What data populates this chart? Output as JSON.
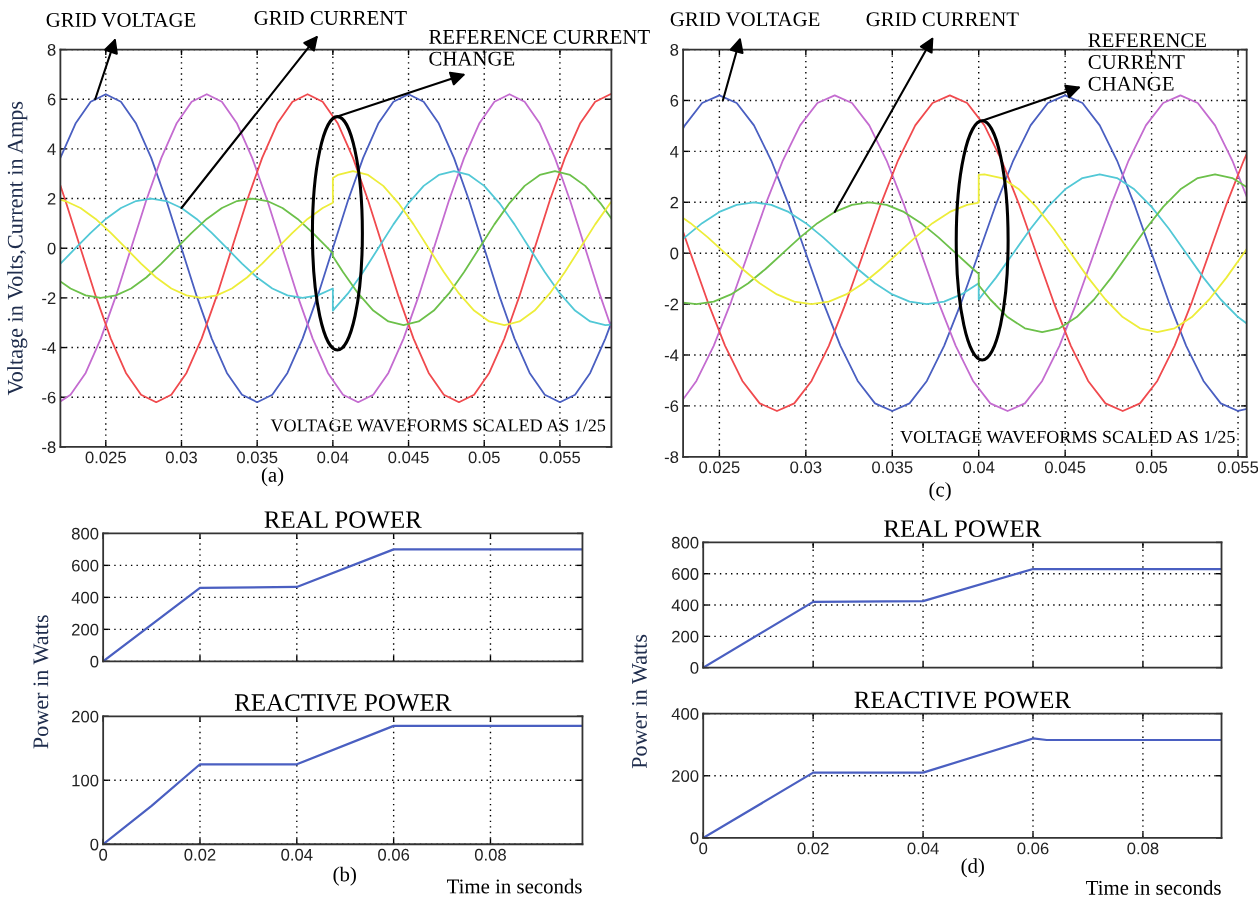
{
  "chart_data": [
    {
      "type": "line",
      "ylabel": "Voltage in Volts,Current in Amps",
      "xlim": [
        0.022,
        0.0584
      ],
      "ylim": [
        -8,
        8
      ],
      "xticks": [
        0.025,
        0.03,
        0.035,
        0.04,
        0.045,
        0.05,
        0.055
      ],
      "yticks": [
        -8,
        -6,
        -4,
        -2,
        0,
        2,
        4,
        6,
        8
      ],
      "grid": true,
      "annotations": [
        {
          "text": "GRID VOLTAGE",
          "x": 0.0243,
          "y": 6.0
        },
        {
          "text": "GRID CURRENT",
          "x": 0.03,
          "y": 1.62
        },
        {
          "text": "REFERENCE CURRENT\nCHANGE",
          "x": 0.0403,
          "y": 5.3
        },
        "VOLTAGE WAVEFORMS SCALED AS 1/25",
        "(a)"
      ],
      "series": [
        {
          "color": "#4a5fc1",
          "x": [
            0.022,
            0.023,
            0.024,
            0.025,
            0.026,
            0.027,
            0.028,
            0.029,
            0.03,
            0.031,
            0.032,
            0.033,
            0.034,
            0.035,
            0.036,
            0.037,
            0.038,
            0.039,
            0.04,
            0.041,
            0.042,
            0.043,
            0.044,
            0.045,
            0.046,
            0.047,
            0.048,
            0.049,
            0.05,
            0.051,
            0.052,
            0.053,
            0.054,
            0.055,
            0.056,
            0.057,
            0.058,
            0.0584
          ],
          "values": [
            3.64,
            5.02,
            5.9,
            6.2,
            5.9,
            5.02,
            3.64,
            1.92,
            0,
            -1.92,
            -3.64,
            -5.02,
            -5.9,
            -6.2,
            -5.9,
            -5.02,
            -3.64,
            -1.92,
            0,
            1.92,
            3.64,
            5.02,
            5.9,
            6.2,
            5.9,
            5.02,
            3.64,
            1.92,
            0,
            -1.92,
            -3.64,
            -5.02,
            -5.9,
            -6.2,
            -5.9,
            -5.02,
            -3.64,
            -2.99
          ]
        },
        {
          "color": "#c46cd0",
          "x": [
            0.022,
            0.02267,
            0.02367,
            0.02467,
            0.02567,
            0.02667,
            0.02767,
            0.02867,
            0.02967,
            0.03067,
            0.03167,
            0.03267,
            0.03367,
            0.03467,
            0.03567,
            0.03667,
            0.03767,
            0.03867,
            0.03967,
            0.04067,
            0.04167,
            0.04267,
            0.04367,
            0.04467,
            0.04567,
            0.04667,
            0.04767,
            0.04867,
            0.04967,
            0.05067,
            0.05167,
            0.05267,
            0.05367,
            0.05467,
            0.05567,
            0.05667,
            0.05767,
            0.0584
          ],
          "values": [
            -6.17,
            -5.9,
            -5.02,
            -3.64,
            -1.92,
            0,
            1.92,
            3.64,
            5.02,
            5.9,
            6.2,
            5.9,
            5.02,
            3.64,
            1.92,
            0,
            -1.92,
            -3.64,
            -5.02,
            -5.9,
            -6.2,
            -5.9,
            -5.02,
            -3.64,
            -1.92,
            0,
            1.92,
            3.64,
            5.02,
            5.9,
            6.2,
            5.9,
            5.02,
            3.64,
            1.92,
            0,
            -1.92,
            -3.21
          ]
        },
        {
          "color": "#f04a4e",
          "x": [
            0.022,
            0.02233,
            0.02333,
            0.02433,
            0.02533,
            0.02633,
            0.02733,
            0.02833,
            0.02933,
            0.03033,
            0.03133,
            0.03233,
            0.03333,
            0.03433,
            0.03533,
            0.03633,
            0.03733,
            0.03833,
            0.03933,
            0.04033,
            0.04133,
            0.04233,
            0.04333,
            0.04433,
            0.04533,
            0.04633,
            0.04733,
            0.04833,
            0.04933,
            0.05033,
            0.05133,
            0.05233,
            0.05333,
            0.05433,
            0.05533,
            0.05633,
            0.05733,
            0.05833,
            0.0584
          ],
          "values": [
            2.52,
            1.92,
            0,
            -1.92,
            -3.64,
            -5.02,
            -5.9,
            -6.2,
            -5.9,
            -5.02,
            -3.64,
            -1.92,
            0,
            1.92,
            3.64,
            5.02,
            5.9,
            6.2,
            5.9,
            5.02,
            3.64,
            1.92,
            0,
            -1.92,
            -3.64,
            -5.02,
            -5.9,
            -6.2,
            -5.9,
            -5.02,
            -3.64,
            -1.92,
            0,
            1.92,
            3.64,
            5.02,
            5.9,
            6.2,
            6.2
          ]
        },
        {
          "color": "#52c8d6",
          "x": [
            0.022,
            0.023,
            0.024,
            0.025,
            0.026,
            0.027,
            0.028,
            0.029,
            0.03,
            0.031,
            0.032,
            0.033,
            0.034,
            0.035,
            0.036,
            0.037,
            0.038,
            0.039,
            0.04,
            0.04,
            0.041,
            0.042,
            0.043,
            0.044,
            0.045,
            0.046,
            0.047,
            0.048,
            0.049,
            0.05,
            0.051,
            0.052,
            0.053,
            0.054,
            0.055,
            0.056,
            0.057,
            0.058,
            0.0584
          ],
          "values": [
            -0.62,
            0,
            0.62,
            1.18,
            1.62,
            1.9,
            2,
            1.9,
            1.62,
            1.18,
            0.62,
            0,
            -0.62,
            -1.18,
            -1.62,
            -1.9,
            -2,
            -1.9,
            -1.62,
            -2.51,
            -1.82,
            -0.96,
            0,
            0.96,
            1.82,
            2.51,
            2.95,
            3.1,
            2.95,
            2.51,
            1.82,
            0.96,
            0,
            -0.96,
            -1.82,
            -2.51,
            -2.95,
            -3.1,
            -3.08
          ]
        },
        {
          "color": "#6cc04a",
          "x": [
            0.022,
            0.02267,
            0.02367,
            0.02467,
            0.02567,
            0.02667,
            0.02767,
            0.02867,
            0.02967,
            0.03067,
            0.03167,
            0.03267,
            0.03367,
            0.03467,
            0.03567,
            0.03667,
            0.03767,
            0.03867,
            0.03967,
            0.04,
            0.04,
            0.04067,
            0.04167,
            0.04267,
            0.04367,
            0.04467,
            0.04567,
            0.04667,
            0.04767,
            0.04867,
            0.04967,
            0.05067,
            0.05167,
            0.05267,
            0.05367,
            0.05467,
            0.05567,
            0.05667,
            0.05767,
            0.0584
          ],
          "values": [
            -1.34,
            -1.62,
            -1.9,
            -2,
            -1.9,
            -1.62,
            -1.18,
            -0.62,
            0,
            0.62,
            1.18,
            1.62,
            1.9,
            2,
            1.9,
            1.62,
            1.18,
            0.62,
            0,
            -0.21,
            -0.32,
            -0.96,
            -1.82,
            -2.51,
            -2.95,
            -3.1,
            -2.95,
            -2.51,
            -1.82,
            -0.96,
            0,
            0.96,
            1.82,
            2.51,
            2.95,
            3.1,
            2.95,
            2.51,
            1.82,
            1.2
          ]
        },
        {
          "color": "#eded3a",
          "x": [
            0.022,
            0.02233,
            0.02333,
            0.02433,
            0.02533,
            0.02633,
            0.02733,
            0.02833,
            0.02933,
            0.03033,
            0.03133,
            0.03233,
            0.03333,
            0.03433,
            0.03533,
            0.03633,
            0.03733,
            0.03833,
            0.03933,
            0.04,
            0.04,
            0.04033,
            0.04133,
            0.04233,
            0.04333,
            0.04433,
            0.04533,
            0.04633,
            0.04733,
            0.04833,
            0.04933,
            0.05033,
            0.05133,
            0.05233,
            0.05333,
            0.05433,
            0.05533,
            0.05633,
            0.05733,
            0.05833,
            0.0584
          ],
          "values": [
            1.96,
            1.9,
            1.62,
            1.18,
            0.62,
            0,
            -0.62,
            -1.18,
            -1.62,
            -1.9,
            -2,
            -1.9,
            -1.62,
            -1.18,
            -0.62,
            0,
            0.62,
            1.18,
            1.62,
            1.83,
            2.83,
            2.95,
            3.1,
            2.95,
            2.51,
            1.82,
            0.96,
            0,
            -0.96,
            -1.82,
            -2.51,
            -2.95,
            -3.1,
            -2.95,
            -2.51,
            -1.82,
            -0.96,
            0,
            0.96,
            1.82,
            1.86
          ]
        }
      ]
    },
    {
      "type": "line",
      "xlim": [
        0.0229,
        0.0555
      ],
      "ylim": [
        -8,
        8
      ],
      "xticks": [
        0.025,
        0.03,
        0.035,
        0.04,
        0.045,
        0.05,
        0.055
      ],
      "yticks": [
        -8,
        -6,
        -4,
        -2,
        0,
        2,
        4,
        6,
        8
      ],
      "grid": true,
      "annotations": [
        {
          "text": "GRID VOLTAGE",
          "x": 0.0252,
          "y": 6.0
        },
        {
          "text": "GRID CURRENT",
          "x": 0.03167,
          "y": 1.62
        },
        {
          "text": "REFERENCE\nCURRENT\nCHANGE",
          "x": 0.0402,
          "y": 5.2
        },
        "VOLTAGE WAVEFORMS SCALED AS 1/25",
        "(c)"
      ],
      "series": [
        {
          "color": "#4a5fc1",
          "x": [
            0.0229,
            0.023,
            0.024,
            0.025,
            0.026,
            0.027,
            0.028,
            0.029,
            0.03,
            0.031,
            0.032,
            0.033,
            0.034,
            0.035,
            0.036,
            0.037,
            0.038,
            0.039,
            0.04,
            0.041,
            0.042,
            0.043,
            0.044,
            0.045,
            0.046,
            0.047,
            0.048,
            0.049,
            0.05,
            0.051,
            0.052,
            0.053,
            0.054,
            0.055,
            0.0555
          ],
          "values": [
            4.9,
            5.02,
            5.9,
            6.2,
            5.9,
            5.02,
            3.64,
            1.92,
            0,
            -1.92,
            -3.64,
            -5.02,
            -5.9,
            -6.2,
            -5.9,
            -5.02,
            -3.64,
            -1.92,
            0,
            1.92,
            3.64,
            5.02,
            5.9,
            6.2,
            5.9,
            5.02,
            3.64,
            1.92,
            0,
            -1.92,
            -3.64,
            -5.02,
            -5.9,
            -6.2,
            -6.12
          ]
        },
        {
          "color": "#c46cd0",
          "x": [
            0.0229,
            0.02367,
            0.02467,
            0.02567,
            0.02667,
            0.02767,
            0.02867,
            0.02967,
            0.03067,
            0.03167,
            0.03267,
            0.03367,
            0.03467,
            0.03567,
            0.03667,
            0.03767,
            0.03867,
            0.03967,
            0.04067,
            0.04167,
            0.04267,
            0.04367,
            0.04467,
            0.04567,
            0.04667,
            0.04767,
            0.04867,
            0.04967,
            0.05067,
            0.05167,
            0.05267,
            0.05367,
            0.05467,
            0.0555
          ],
          "values": [
            -5.74,
            -5.02,
            -3.64,
            -1.92,
            0,
            1.92,
            3.64,
            5.02,
            5.9,
            6.2,
            5.9,
            5.02,
            3.64,
            1.92,
            0,
            -1.92,
            -3.64,
            -5.02,
            -5.9,
            -6.2,
            -5.9,
            -5.02,
            -3.64,
            -1.92,
            0,
            1.92,
            3.64,
            5.02,
            5.9,
            6.2,
            5.9,
            5.02,
            3.64,
            2.22
          ]
        },
        {
          "color": "#f04a4e",
          "x": [
            0.0229,
            0.02333,
            0.02433,
            0.02533,
            0.02633,
            0.02733,
            0.02833,
            0.02933,
            0.03033,
            0.03133,
            0.03233,
            0.03333,
            0.03433,
            0.03533,
            0.03633,
            0.03733,
            0.03833,
            0.03933,
            0.04033,
            0.04133,
            0.04233,
            0.04333,
            0.04433,
            0.04533,
            0.04633,
            0.04733,
            0.04833,
            0.04933,
            0.05033,
            0.05133,
            0.05233,
            0.05333,
            0.05433,
            0.05533,
            0.0555
          ],
          "values": [
            0.84,
            0,
            -1.92,
            -3.64,
            -5.02,
            -5.9,
            -6.2,
            -5.9,
            -5.02,
            -3.64,
            -1.92,
            0,
            1.92,
            3.64,
            5.02,
            5.9,
            6.2,
            5.9,
            5.02,
            3.64,
            1.92,
            0,
            -1.92,
            -3.64,
            -5.02,
            -5.9,
            -6.2,
            -5.9,
            -5.02,
            -3.64,
            -1.92,
            0,
            1.92,
            3.64,
            3.9
          ]
        },
        {
          "color": "#52c8d6",
          "x": [
            0.0229,
            0.023,
            0.024,
            0.025,
            0.026,
            0.027,
            0.028,
            0.029,
            0.03,
            0.031,
            0.032,
            0.033,
            0.034,
            0.035,
            0.036,
            0.037,
            0.038,
            0.039,
            0.04,
            0.04,
            0.041,
            0.042,
            0.043,
            0.044,
            0.045,
            0.046,
            0.047,
            0.048,
            0.049,
            0.05,
            0.051,
            0.052,
            0.053,
            0.054,
            0.055,
            0.0555
          ],
          "values": [
            0.56,
            0.62,
            1.18,
            1.62,
            1.9,
            2,
            1.9,
            1.62,
            1.18,
            0.62,
            0,
            -0.62,
            -1.18,
            -1.62,
            -1.9,
            -2,
            -1.9,
            -1.62,
            -1.18,
            -1.82,
            -0.96,
            0,
            0.96,
            1.82,
            2.51,
            2.95,
            3.1,
            2.95,
            2.51,
            1.82,
            0.96,
            0,
            -0.96,
            -1.82,
            -2.51,
            -2.76
          ]
        },
        {
          "color": "#6cc04a",
          "x": [
            0.0229,
            0.02367,
            0.02467,
            0.02567,
            0.02667,
            0.02767,
            0.02867,
            0.02967,
            0.03067,
            0.03167,
            0.03267,
            0.03367,
            0.03467,
            0.03567,
            0.03667,
            0.03767,
            0.03867,
            0.03967,
            0.04,
            0.04,
            0.04067,
            0.04167,
            0.04267,
            0.04367,
            0.04467,
            0.04567,
            0.04667,
            0.04767,
            0.04867,
            0.04967,
            0.05067,
            0.05167,
            0.05267,
            0.05367,
            0.05467,
            0.0555
          ],
          "values": [
            -1.94,
            -2,
            -1.9,
            -1.62,
            -1.18,
            -0.62,
            0,
            0.62,
            1.18,
            1.62,
            1.9,
            2,
            1.9,
            1.62,
            1.18,
            0.62,
            0,
            -0.62,
            -0.81,
            -1.26,
            -1.82,
            -2.51,
            -2.95,
            -3.1,
            -2.95,
            -2.51,
            -1.82,
            -0.96,
            0,
            0.96,
            1.82,
            2.51,
            2.95,
            3.1,
            2.95,
            2.6
          ]
        },
        {
          "color": "#eded3a",
          "x": [
            0.0229,
            0.02333,
            0.02433,
            0.02533,
            0.02633,
            0.02733,
            0.02833,
            0.02933,
            0.03033,
            0.03133,
            0.03233,
            0.03333,
            0.03433,
            0.03533,
            0.03633,
            0.03733,
            0.03833,
            0.03933,
            0.04,
            0.04,
            0.04033,
            0.04133,
            0.04233,
            0.04333,
            0.04433,
            0.04533,
            0.04633,
            0.04733,
            0.04833,
            0.04933,
            0.05033,
            0.05133,
            0.05233,
            0.05333,
            0.05433,
            0.05533,
            0.0555
          ],
          "values": [
            1.38,
            1.18,
            0.62,
            0,
            -0.62,
            -1.18,
            -1.62,
            -1.9,
            -2,
            -1.9,
            -1.62,
            -1.18,
            -0.62,
            0,
            0.62,
            1.18,
            1.62,
            1.9,
            1.99,
            3.08,
            3.1,
            2.95,
            2.51,
            1.82,
            0.96,
            0,
            -0.96,
            -1.82,
            -2.51,
            -2.95,
            -3.1,
            -2.95,
            -2.51,
            -1.82,
            -0.96,
            0,
            0.16
          ]
        }
      ]
    },
    {
      "type": "line",
      "title": "REAL POWER",
      "ylabel": "Power in Watts",
      "xlim": [
        0,
        0.099
      ],
      "ylim": [
        0,
        800
      ],
      "xticks": [
        0,
        0.02,
        0.04,
        0.06,
        0.08
      ],
      "yticks": [
        0,
        200,
        400,
        600,
        800
      ],
      "grid": true,
      "tick_labels": "y",
      "series": [
        {
          "color": "#4a5fc1",
          "x": [
            0,
            0.02,
            0.04,
            0.06,
            0.099
          ],
          "values": [
            0,
            460,
            465,
            700,
            700
          ]
        }
      ]
    },
    {
      "type": "line",
      "title": "REACTIVE POWER",
      "xlabel": "Time in seconds",
      "xlim": [
        0,
        0.099
      ],
      "ylim": [
        0,
        200
      ],
      "xticks": [
        0,
        0.02,
        0.04,
        0.06,
        0.08
      ],
      "yticks": [
        0,
        100,
        200
      ],
      "grid": true,
      "annotations": [
        "(b)"
      ],
      "series": [
        {
          "color": "#4a5fc1",
          "x": [
            0,
            0.01,
            0.02,
            0.04,
            0.06,
            0.099
          ],
          "values": [
            0,
            60,
            125,
            125,
            185,
            185
          ]
        }
      ]
    },
    {
      "type": "line",
      "title": "REAL POWER",
      "ylabel": "Power in Watts",
      "xlim": [
        0,
        0.0943
      ],
      "ylim": [
        0,
        800
      ],
      "xticks": [
        0,
        0.02,
        0.04,
        0.06,
        0.08
      ],
      "yticks": [
        0,
        200,
        400,
        600,
        800
      ],
      "grid": true,
      "tick_labels": "y",
      "series": [
        {
          "color": "#4a5fc1",
          "x": [
            0,
            0.02,
            0.04,
            0.06,
            0.0943
          ],
          "values": [
            0,
            420,
            425,
            630,
            630
          ]
        }
      ]
    },
    {
      "type": "line",
      "title": "REACTIVE POWER",
      "xlabel": "Time in seconds",
      "xlim": [
        0,
        0.0943
      ],
      "ylim": [
        0,
        400
      ],
      "xticks": [
        0,
        0.02,
        0.04,
        0.06,
        0.08
      ],
      "yticks": [
        0,
        200,
        400
      ],
      "grid": true,
      "annotations": [
        "(d)"
      ],
      "series": [
        {
          "color": "#4a5fc1",
          "x": [
            0,
            0.02,
            0.04,
            0.06,
            0.0625,
            0.0943
          ],
          "values": [
            0,
            210,
            210,
            320,
            315,
            315
          ]
        }
      ]
    }
  ]
}
